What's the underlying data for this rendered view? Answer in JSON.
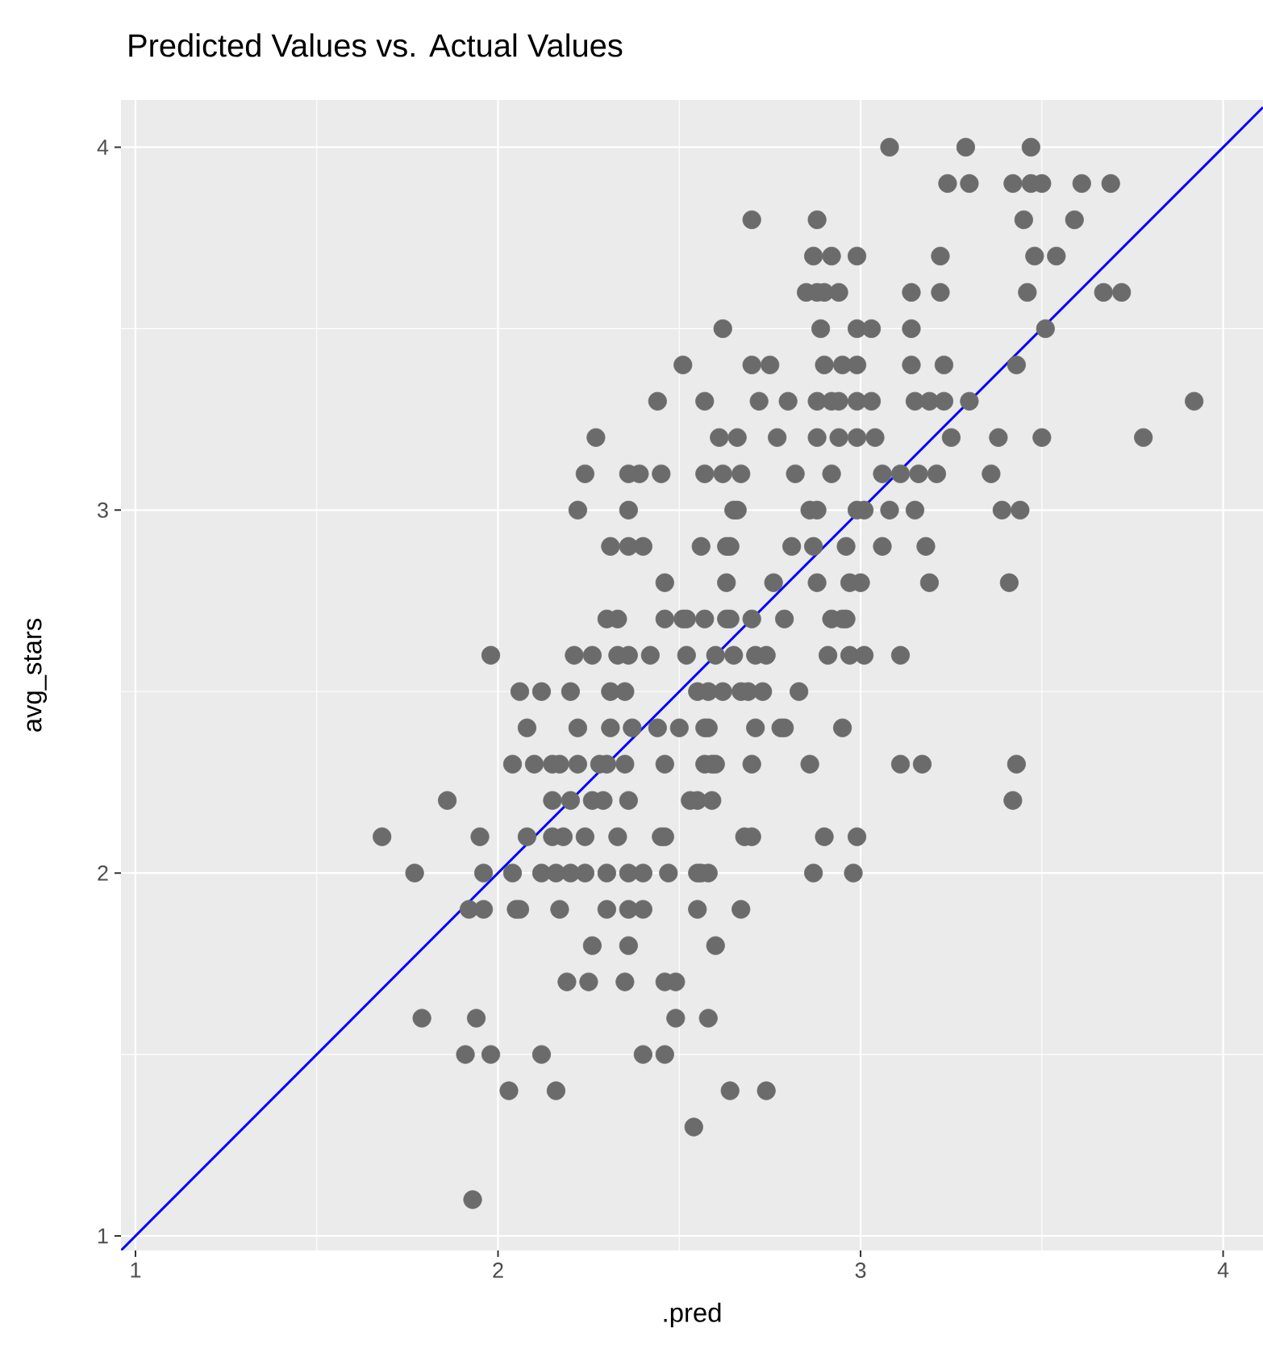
{
  "chart_data": {
    "type": "scatter",
    "title": "Predicted Values vs. Actual Values",
    "xlabel": ".pred",
    "ylabel": "avg_stars",
    "xlim": [
      0.96,
      4.11
    ],
    "ylim": [
      0.96,
      4.13
    ],
    "xticks": [
      1,
      2,
      3,
      4
    ],
    "yticks": [
      1,
      2,
      3,
      4
    ],
    "grid": true,
    "series": [
      {
        "marker": "circle",
        "color": "#6b6b6b",
        "x": [
          3.08,
          3.29,
          3.47,
          3.24,
          3.3,
          3.42,
          3.47,
          3.5,
          3.61,
          3.69,
          2.7,
          2.88,
          3.45,
          3.59,
          2.87,
          2.92,
          2.99,
          3.22,
          3.48,
          3.54,
          2.85,
          2.88,
          2.9,
          2.94,
          3.14,
          3.22,
          3.46,
          3.67,
          3.72,
          2.62,
          2.89,
          2.99,
          3.03,
          3.14,
          3.51,
          2.51,
          2.7,
          2.75,
          2.9,
          2.95,
          2.99,
          3.14,
          3.23,
          3.43,
          2.44,
          2.57,
          2.72,
          2.8,
          2.88,
          2.92,
          2.94,
          2.99,
          3.03,
          3.15,
          3.19,
          3.23,
          3.3,
          3.92,
          2.27,
          2.61,
          2.66,
          2.77,
          2.88,
          2.94,
          2.99,
          3.04,
          3.25,
          3.38,
          3.5,
          3.78,
          2.24,
          2.36,
          2.39,
          2.45,
          2.57,
          2.62,
          2.67,
          2.82,
          2.92,
          3.06,
          3.11,
          3.16,
          3.21,
          3.36,
          2.22,
          2.36,
          2.65,
          2.66,
          2.86,
          2.88,
          2.99,
          3.01,
          3.08,
          3.15,
          3.39,
          3.44,
          2.31,
          2.36,
          2.4,
          2.56,
          2.63,
          2.64,
          2.81,
          2.87,
          2.96,
          3.06,
          3.18,
          2.46,
          2.63,
          2.76,
          2.88,
          2.97,
          3.0,
          3.19,
          3.41,
          2.3,
          2.33,
          2.46,
          2.51,
          2.52,
          2.57,
          2.63,
          2.64,
          2.7,
          2.79,
          2.92,
          2.95,
          2.96,
          1.98,
          2.21,
          2.26,
          2.33,
          2.36,
          2.42,
          2.52,
          2.6,
          2.65,
          2.71,
          2.74,
          2.91,
          2.97,
          3.01,
          3.11,
          2.06,
          2.12,
          2.2,
          2.31,
          2.35,
          2.55,
          2.58,
          2.62,
          2.67,
          2.69,
          2.73,
          2.83,
          2.08,
          2.22,
          2.31,
          2.37,
          2.44,
          2.5,
          2.57,
          2.58,
          2.71,
          2.78,
          2.79,
          2.95,
          2.04,
          2.1,
          2.15,
          2.17,
          2.22,
          2.28,
          2.3,
          2.35,
          2.46,
          2.57,
          2.59,
          2.6,
          2.7,
          2.86,
          3.11,
          3.17,
          3.43,
          1.86,
          2.15,
          2.2,
          2.26,
          2.29,
          2.36,
          2.53,
          2.55,
          2.59,
          3.42,
          1.68,
          1.95,
          2.08,
          2.15,
          2.18,
          2.24,
          2.33,
          2.45,
          2.46,
          2.68,
          2.7,
          2.9,
          2.99,
          1.77,
          1.96,
          2.04,
          2.12,
          2.16,
          2.2,
          2.24,
          2.3,
          2.36,
          2.4,
          2.47,
          2.55,
          2.56,
          2.58,
          2.87,
          2.98,
          1.92,
          1.96,
          2.05,
          2.06,
          2.17,
          2.3,
          2.36,
          2.4,
          2.55,
          2.67,
          2.26,
          2.36,
          2.6,
          2.19,
          2.25,
          2.35,
          2.46,
          2.49,
          1.79,
          1.94,
          2.49,
          2.58,
          1.91,
          1.98,
          2.12,
          2.4,
          2.46,
          2.03,
          2.16,
          2.64,
          2.74,
          2.54,
          1.93
        ],
        "values": [
          4.0,
          4.0,
          4.0,
          3.9,
          3.9,
          3.9,
          3.9,
          3.9,
          3.9,
          3.9,
          3.8,
          3.8,
          3.8,
          3.8,
          3.7,
          3.7,
          3.7,
          3.7,
          3.7,
          3.7,
          3.6,
          3.6,
          3.6,
          3.6,
          3.6,
          3.6,
          3.6,
          3.6,
          3.6,
          3.5,
          3.5,
          3.5,
          3.5,
          3.5,
          3.5,
          3.4,
          3.4,
          3.4,
          3.4,
          3.4,
          3.4,
          3.4,
          3.4,
          3.4,
          3.3,
          3.3,
          3.3,
          3.3,
          3.3,
          3.3,
          3.3,
          3.3,
          3.3,
          3.3,
          3.3,
          3.3,
          3.3,
          3.3,
          3.2,
          3.2,
          3.2,
          3.2,
          3.2,
          3.2,
          3.2,
          3.2,
          3.2,
          3.2,
          3.2,
          3.2,
          3.1,
          3.1,
          3.1,
          3.1,
          3.1,
          3.1,
          3.1,
          3.1,
          3.1,
          3.1,
          3.1,
          3.1,
          3.1,
          3.1,
          3.0,
          3.0,
          3.0,
          3.0,
          3.0,
          3.0,
          3.0,
          3.0,
          3.0,
          3.0,
          3.0,
          3.0,
          2.9,
          2.9,
          2.9,
          2.9,
          2.9,
          2.9,
          2.9,
          2.9,
          2.9,
          2.9,
          2.9,
          2.8,
          2.8,
          2.8,
          2.8,
          2.8,
          2.8,
          2.8,
          2.8,
          2.7,
          2.7,
          2.7,
          2.7,
          2.7,
          2.7,
          2.7,
          2.7,
          2.7,
          2.7,
          2.7,
          2.7,
          2.7,
          2.6,
          2.6,
          2.6,
          2.6,
          2.6,
          2.6,
          2.6,
          2.6,
          2.6,
          2.6,
          2.6,
          2.6,
          2.6,
          2.6,
          2.6,
          2.5,
          2.5,
          2.5,
          2.5,
          2.5,
          2.5,
          2.5,
          2.5,
          2.5,
          2.5,
          2.5,
          2.5,
          2.4,
          2.4,
          2.4,
          2.4,
          2.4,
          2.4,
          2.4,
          2.4,
          2.4,
          2.4,
          2.4,
          2.4,
          2.3,
          2.3,
          2.3,
          2.3,
          2.3,
          2.3,
          2.3,
          2.3,
          2.3,
          2.3,
          2.3,
          2.3,
          2.3,
          2.3,
          2.3,
          2.3,
          2.3,
          2.2,
          2.2,
          2.2,
          2.2,
          2.2,
          2.2,
          2.2,
          2.2,
          2.2,
          2.2,
          2.1,
          2.1,
          2.1,
          2.1,
          2.1,
          2.1,
          2.1,
          2.1,
          2.1,
          2.1,
          2.1,
          2.1,
          2.1,
          2.0,
          2.0,
          2.0,
          2.0,
          2.0,
          2.0,
          2.0,
          2.0,
          2.0,
          2.0,
          2.0,
          2.0,
          2.0,
          2.0,
          2.0,
          2.0,
          1.9,
          1.9,
          1.9,
          1.9,
          1.9,
          1.9,
          1.9,
          1.9,
          1.9,
          1.9,
          1.8,
          1.8,
          1.8,
          1.7,
          1.7,
          1.7,
          1.7,
          1.7,
          1.6,
          1.6,
          1.6,
          1.6,
          1.5,
          1.5,
          1.5,
          1.5,
          1.5,
          1.4,
          1.4,
          1.4,
          1.4,
          1.3,
          1.1
        ]
      },
      {
        "type": "line",
        "marker": "none",
        "color": "#0000ff",
        "x": [
          0.96,
          4.11
        ],
        "values": [
          0.96,
          4.11
        ]
      }
    ]
  }
}
